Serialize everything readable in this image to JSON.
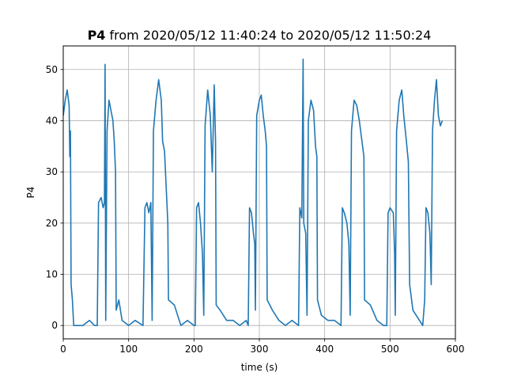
{
  "chart_data": {
    "type": "line",
    "title_bold": "P4",
    "title_rest": " from 2020/05/12 11:40:24 to 2020/05/12 11:50:24",
    "xlabel": "time (s)",
    "ylabel": "P4",
    "xlim": [
      0,
      600
    ],
    "ylim": [
      -2.6,
      54.6
    ],
    "xticks": [
      0,
      100,
      200,
      300,
      400,
      500,
      600
    ],
    "yticks": [
      0,
      10,
      20,
      30,
      40,
      50
    ],
    "grid": true,
    "series_color": "#1f77b4",
    "series": [
      {
        "points": [
          [
            0,
            41
          ],
          [
            3,
            44
          ],
          [
            6,
            46
          ],
          [
            9,
            43
          ],
          [
            10,
            33
          ],
          [
            11,
            38
          ],
          [
            12,
            8
          ],
          [
            14,
            5
          ],
          [
            16,
            0
          ],
          [
            20,
            0
          ],
          [
            30,
            0
          ],
          [
            40,
            1
          ],
          [
            48,
            0
          ],
          [
            52,
            0
          ],
          [
            54,
            24
          ],
          [
            58,
            25
          ],
          [
            61,
            23
          ],
          [
            63,
            24
          ],
          [
            64,
            51
          ],
          [
            65,
            1
          ],
          [
            67,
            38
          ],
          [
            70,
            44
          ],
          [
            73,
            42
          ],
          [
            76,
            40
          ],
          [
            78,
            36
          ],
          [
            80,
            30
          ],
          [
            81,
            3
          ],
          [
            85,
            5
          ],
          [
            90,
            1
          ],
          [
            100,
            0
          ],
          [
            110,
            1
          ],
          [
            122,
            0
          ],
          [
            125,
            23
          ],
          [
            128,
            24
          ],
          [
            131,
            22
          ],
          [
            134,
            24
          ],
          [
            136,
            1
          ],
          [
            138,
            38
          ],
          [
            142,
            44
          ],
          [
            146,
            48
          ],
          [
            150,
            44
          ],
          [
            152,
            36
          ],
          [
            155,
            34
          ],
          [
            160,
            20
          ],
          [
            161,
            5
          ],
          [
            170,
            4
          ],
          [
            180,
            0
          ],
          [
            190,
            1
          ],
          [
            200,
            0
          ],
          [
            202,
            0
          ],
          [
            204,
            23
          ],
          [
            207,
            24
          ],
          [
            210,
            20
          ],
          [
            213,
            14
          ],
          [
            215,
            2
          ],
          [
            217,
            39
          ],
          [
            221,
            46
          ],
          [
            225,
            41
          ],
          [
            228,
            30
          ],
          [
            231,
            47
          ],
          [
            233,
            36
          ],
          [
            234,
            4
          ],
          [
            240,
            3
          ],
          [
            250,
            1
          ],
          [
            260,
            1
          ],
          [
            270,
            0
          ],
          [
            280,
            1
          ],
          [
            283,
            0
          ],
          [
            285,
            23
          ],
          [
            288,
            22
          ],
          [
            291,
            18
          ],
          [
            293,
            16
          ],
          [
            294,
            3
          ],
          [
            296,
            41
          ],
          [
            300,
            44
          ],
          [
            303,
            45
          ],
          [
            306,
            41
          ],
          [
            309,
            38
          ],
          [
            311,
            35
          ],
          [
            312,
            5
          ],
          [
            320,
            3
          ],
          [
            330,
            1
          ],
          [
            340,
            0
          ],
          [
            350,
            1
          ],
          [
            360,
            0
          ],
          [
            362,
            23
          ],
          [
            365,
            21
          ],
          [
            367,
            52
          ],
          [
            368,
            20
          ],
          [
            371,
            18
          ],
          [
            373,
            2
          ],
          [
            375,
            40
          ],
          [
            379,
            44
          ],
          [
            383,
            42
          ],
          [
            386,
            35
          ],
          [
            388,
            33
          ],
          [
            389,
            5
          ],
          [
            395,
            2
          ],
          [
            405,
            1
          ],
          [
            415,
            1
          ],
          [
            425,
            0
          ],
          [
            427,
            23
          ],
          [
            430,
            22
          ],
          [
            434,
            20
          ],
          [
            437,
            16
          ],
          [
            439,
            2
          ],
          [
            441,
            38
          ],
          [
            445,
            44
          ],
          [
            449,
            43
          ],
          [
            453,
            40
          ],
          [
            457,
            36
          ],
          [
            460,
            33
          ],
          [
            461,
            5
          ],
          [
            470,
            4
          ],
          [
            480,
            1
          ],
          [
            490,
            0
          ],
          [
            495,
            0
          ],
          [
            497,
            22
          ],
          [
            500,
            23
          ],
          [
            505,
            22
          ],
          [
            507,
            14
          ],
          [
            508,
            2
          ],
          [
            510,
            38
          ],
          [
            514,
            44
          ],
          [
            518,
            46
          ],
          [
            521,
            41
          ],
          [
            525,
            36
          ],
          [
            528,
            32
          ],
          [
            530,
            8
          ],
          [
            535,
            3
          ],
          [
            540,
            2
          ],
          [
            545,
            1
          ],
          [
            550,
            0
          ],
          [
            553,
            5
          ],
          [
            555,
            23
          ],
          [
            558,
            22
          ],
          [
            561,
            18
          ],
          [
            563,
            8
          ],
          [
            565,
            38
          ],
          [
            568,
            44
          ],
          [
            571,
            48
          ],
          [
            574,
            41
          ],
          [
            577,
            39
          ],
          [
            580,
            40
          ]
        ]
      }
    ]
  }
}
